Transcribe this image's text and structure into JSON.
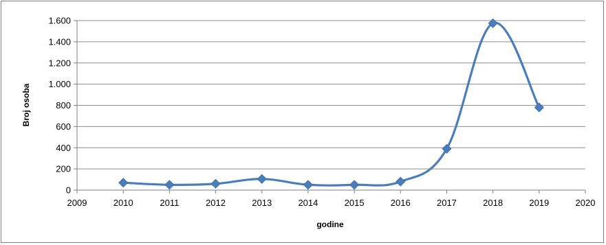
{
  "chart_data": {
    "type": "line",
    "title": "",
    "xlabel": "godine",
    "ylabel": "Broj osoba",
    "xlim": [
      2009,
      2020
    ],
    "ylim": [
      0,
      1600
    ],
    "x_ticks": [
      2009,
      2010,
      2011,
      2012,
      2013,
      2014,
      2015,
      2016,
      2017,
      2018,
      2019,
      2020
    ],
    "x_tick_labels": [
      "2009",
      "2010",
      "2011",
      "2012",
      "2013",
      "2014",
      "2015",
      "2016",
      "2017",
      "2018",
      "2019",
      "2020"
    ],
    "y_ticks": [
      0,
      200,
      400,
      600,
      800,
      1000,
      1200,
      1400,
      1600
    ],
    "y_tick_labels": [
      "0",
      "200",
      "400",
      "600",
      "800",
      "1.000",
      "1.200",
      "1.400",
      "1.600"
    ],
    "grid": "horizontal",
    "legend": "none",
    "series": [
      {
        "x": [
          2010,
          2011,
          2012,
          2013,
          2014,
          2015,
          2016,
          2017,
          2018,
          2019
        ],
        "values": [
          70,
          50,
          60,
          105,
          50,
          50,
          80,
          390,
          1575,
          780
        ],
        "color": "#4a7ebb",
        "marker": "diamond"
      }
    ]
  }
}
